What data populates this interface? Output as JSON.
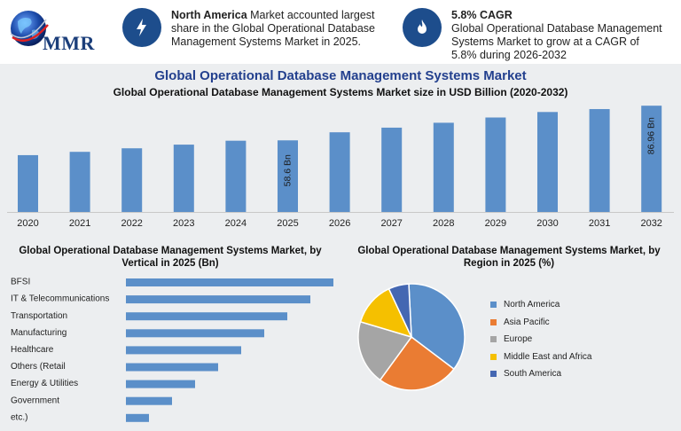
{
  "header": {
    "logo_text": "MMR",
    "north_america_bold": "North America",
    "north_america_text": " Market accounted largest share in the Global Operational Database Management Systems Market in 2025.",
    "cagr_bold": "5.8% CAGR",
    "cagr_text": "Global Operational Database Management Systems Market to grow at a CAGR of 5.8% during 2026-2032"
  },
  "colors": {
    "bar": "#5b8fc9",
    "hbar": "#5b8fc9",
    "icon_bg": "#1d4d8c",
    "title": "#23408e"
  },
  "chart_data": [
    {
      "type": "bar",
      "title": "Global Operational Database Management Systems Market",
      "subtitle": "Global Operational Database Management Systems Market size in USD Billion (2020-2032)",
      "categories": [
        "2020",
        "2021",
        "2022",
        "2023",
        "2024",
        "2025",
        "2026",
        "2027",
        "2028",
        "2029",
        "2030",
        "2031",
        "2032"
      ],
      "values": [
        46.5,
        49.2,
        52.1,
        55.1,
        58.3,
        58.6,
        65.2,
        69.0,
        73.0,
        77.3,
        81.8,
        84.2,
        86.96
      ],
      "data_labels": {
        "5": "58.6 Bn",
        "12": "86.96 Bn"
      },
      "ylim": [
        0,
        90
      ],
      "grid": false
    },
    {
      "type": "bar",
      "orientation": "horizontal",
      "title": "Global Operational Database Management Systems Market, by Vertical in 2025 (Bn)",
      "categories": [
        "BFSI",
        "IT & Telecommunications",
        "Transportation",
        "Manufacturing",
        "Healthcare",
        "Others (Retail",
        "Energy & Utilities",
        "Government",
        "etc.)"
      ],
      "values": [
        9.0,
        8.0,
        7.0,
        6.0,
        5.0,
        4.0,
        3.0,
        2.0,
        1.0
      ],
      "xlim": [
        0,
        10
      ]
    },
    {
      "type": "pie",
      "title": "Global Operational Database Management Systems Market, by Region in 2025 (%)",
      "labels": [
        "North America",
        "Asia Pacific",
        "Europe",
        "Middle East and Africa",
        "South America"
      ],
      "values": [
        35,
        24,
        19,
        13,
        6
      ],
      "colors": [
        "#5b8fc9",
        "#ea7c33",
        "#a5a5a5",
        "#f5c000",
        "#4467b2"
      ],
      "legend": "right"
    }
  ]
}
